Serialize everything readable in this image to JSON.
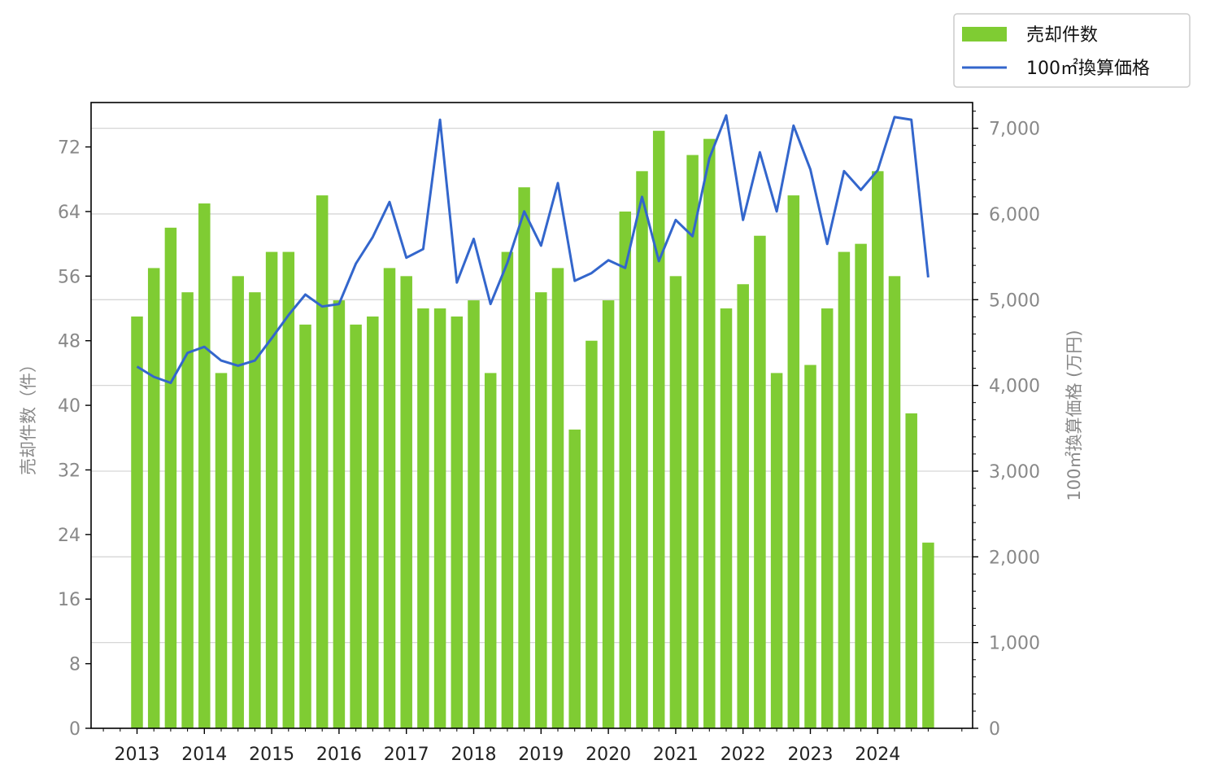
{
  "chart_data": {
    "type": "bar",
    "title": "",
    "xlabel": "",
    "ylabel": "売却件数（件）",
    "y2label": "100㎡換算価格 (万円)",
    "x_tick_labels": [
      "2013",
      "2014",
      "2015",
      "2016",
      "2017",
      "2018",
      "2019",
      "2020",
      "2021",
      "2022",
      "2023",
      "2024"
    ],
    "ylim": [
      0,
      77.5
    ],
    "y2lim": [
      0,
      7300
    ],
    "yticks": [
      0,
      8,
      16,
      24,
      32,
      40,
      48,
      56,
      64,
      72
    ],
    "y2ticks": [
      0,
      1000,
      2000,
      3000,
      4000,
      5000,
      6000,
      7000
    ],
    "y2tick_labels": [
      "0",
      "1,000",
      "2,000",
      "3,000",
      "4,000",
      "5,000",
      "6,000",
      "7,000"
    ],
    "grid": "horizontal (right axis)",
    "legend_position": "top-right, outside plot",
    "x": [
      "2013 Q1",
      "2013 Q2",
      "2013 Q3",
      "2013 Q4",
      "2014 Q1",
      "2014 Q2",
      "2014 Q3",
      "2014 Q4",
      "2015 Q1",
      "2015 Q2",
      "2015 Q3",
      "2015 Q4",
      "2016 Q1",
      "2016 Q2",
      "2016 Q3",
      "2016 Q4",
      "2017 Q1",
      "2017 Q2",
      "2017 Q3",
      "2017 Q4",
      "2018 Q1",
      "2018 Q2",
      "2018 Q3",
      "2018 Q4",
      "2019 Q1",
      "2019 Q2",
      "2019 Q3",
      "2019 Q4",
      "2020 Q1",
      "2020 Q2",
      "2020 Q3",
      "2020 Q4",
      "2021 Q1",
      "2021 Q2",
      "2021 Q3",
      "2021 Q4",
      "2022 Q1",
      "2022 Q2",
      "2022 Q3",
      "2022 Q4",
      "2023 Q1",
      "2023 Q2",
      "2023 Q3",
      "2023 Q4",
      "2024 Q1",
      "2024 Q2",
      "2024 Q3",
      "2024 Q4"
    ],
    "series": [
      {
        "name": "売却件数",
        "type": "bar",
        "axis": "left",
        "color": "#7fcc33",
        "values": [
          51,
          57,
          62,
          54,
          65,
          44,
          56,
          54,
          59,
          59,
          50,
          66,
          53,
          50,
          51,
          57,
          56,
          52,
          52,
          51,
          53,
          44,
          59,
          67,
          54,
          57,
          37,
          48,
          53,
          64,
          69,
          74,
          56,
          71,
          73,
          52,
          55,
          61,
          44,
          66,
          45,
          52,
          59,
          60,
          69,
          56,
          39,
          23
        ]
      },
      {
        "name": "100㎡換算価格",
        "type": "line",
        "axis": "right",
        "color": "#3366cc",
        "values": [
          4220,
          4100,
          4030,
          4380,
          4450,
          4290,
          4230,
          4290,
          4550,
          4820,
          5060,
          4920,
          4950,
          5420,
          5730,
          6140,
          5490,
          5590,
          7100,
          5200,
          5710,
          4950,
          5430,
          6030,
          5630,
          6360,
          5220,
          5310,
          5460,
          5370,
          6200,
          5450,
          5930,
          5740,
          6650,
          7150,
          5930,
          6720,
          6030,
          7030,
          6520,
          5650,
          6500,
          6280,
          6510,
          7130,
          7100,
          5260
        ]
      }
    ]
  }
}
